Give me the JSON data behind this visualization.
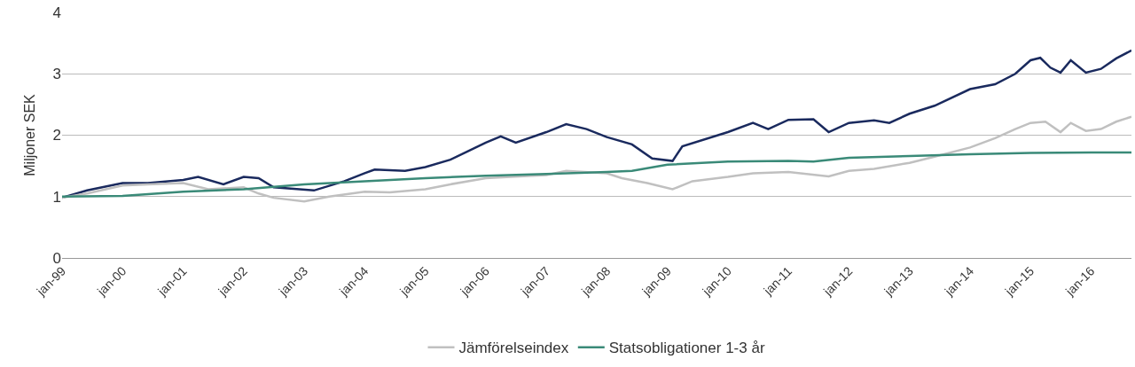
{
  "chart_data": {
    "type": "line",
    "ylabel": "Miljoner SEK",
    "xlim": [
      "1999-01",
      "2016-09"
    ],
    "ylim": [
      0,
      4
    ],
    "yticks": [
      0,
      1,
      2,
      3,
      4
    ],
    "xticks": [
      {
        "value": "1999-01",
        "label": "jan-99"
      },
      {
        "value": "2000-01",
        "label": "jan-00"
      },
      {
        "value": "2001-01",
        "label": "jan-01"
      },
      {
        "value": "2002-01",
        "label": "jan-02"
      },
      {
        "value": "2003-01",
        "label": "jan-03"
      },
      {
        "value": "2004-01",
        "label": "jan-04"
      },
      {
        "value": "2005-01",
        "label": "jan-05"
      },
      {
        "value": "2006-01",
        "label": "jan-06"
      },
      {
        "value": "2007-01",
        "label": "jan-07"
      },
      {
        "value": "2008-01",
        "label": "jan-08"
      },
      {
        "value": "2009-01",
        "label": "jan-09"
      },
      {
        "value": "2010-01",
        "label": "jan-10"
      },
      {
        "value": "2011-01",
        "label": "jan-11"
      },
      {
        "value": "2012-01",
        "label": "jan-12"
      },
      {
        "value": "2013-01",
        "label": "jan-13"
      },
      {
        "value": "2014-01",
        "label": "jan-14"
      },
      {
        "value": "2015-01",
        "label": "jan-15"
      },
      {
        "value": "2016-01",
        "label": "jan-16"
      }
    ],
    "grid": "y",
    "legend": "bottom",
    "marker": "none",
    "line_style": "solid",
    "series": [
      {
        "color": "#1a2a5e",
        "x": [
          "1999-01",
          "1999-06",
          "2000-01",
          "2000-06",
          "2001-01",
          "2001-04",
          "2001-09",
          "2002-01",
          "2002-04",
          "2002-07",
          "2003-03",
          "2003-09",
          "2004-01",
          "2004-03",
          "2004-09",
          "2005-01",
          "2005-06",
          "2005-09",
          "2006-01",
          "2006-04",
          "2006-07",
          "2007-01",
          "2007-05",
          "2007-09",
          "2008-01",
          "2008-06",
          "2008-10",
          "2009-02",
          "2009-04",
          "2010-01",
          "2010-06",
          "2010-09",
          "2011-01",
          "2011-06",
          "2011-09",
          "2012-01",
          "2012-06",
          "2012-09",
          "2013-01",
          "2013-06",
          "2014-01",
          "2014-06",
          "2014-10",
          "2015-01",
          "2015-03",
          "2015-05",
          "2015-07",
          "2015-09",
          "2015-12",
          "2016-03",
          "2016-06",
          "2016-09"
        ],
        "values": [
          0.98,
          1.1,
          1.22,
          1.22,
          1.27,
          1.32,
          1.2,
          1.32,
          1.3,
          1.15,
          1.1,
          1.25,
          1.38,
          1.44,
          1.42,
          1.48,
          1.6,
          1.72,
          1.88,
          1.98,
          1.88,
          2.05,
          2.18,
          2.1,
          1.97,
          1.85,
          1.62,
          1.58,
          1.82,
          2.05,
          2.2,
          2.1,
          2.25,
          2.26,
          2.05,
          2.2,
          2.24,
          2.2,
          2.35,
          2.48,
          2.75,
          2.83,
          3.0,
          3.22,
          3.26,
          3.1,
          3.02,
          3.22,
          3.02,
          3.08,
          3.25,
          3.38
        ]
      },
      {
        "name": "Jämförelseindex",
        "color": "#c0c0c0",
        "x": [
          "1999-01",
          "1999-06",
          "2000-01",
          "2000-06",
          "2001-01",
          "2001-06",
          "2002-01",
          "2002-04",
          "2002-07",
          "2003-01",
          "2003-06",
          "2004-01",
          "2004-06",
          "2005-01",
          "2005-06",
          "2006-01",
          "2006-06",
          "2007-01",
          "2007-05",
          "2008-01",
          "2008-04",
          "2008-09",
          "2009-02",
          "2009-06",
          "2010-01",
          "2010-06",
          "2011-01",
          "2011-09",
          "2012-01",
          "2012-06",
          "2013-01",
          "2013-06",
          "2014-01",
          "2014-06",
          "2014-10",
          "2015-01",
          "2015-04",
          "2015-07",
          "2015-09",
          "2015-12",
          "2016-03",
          "2016-06",
          "2016-09"
        ],
        "values": [
          0.98,
          1.05,
          1.18,
          1.2,
          1.22,
          1.12,
          1.15,
          1.05,
          0.98,
          0.92,
          1.0,
          1.08,
          1.07,
          1.12,
          1.2,
          1.3,
          1.32,
          1.35,
          1.42,
          1.38,
          1.3,
          1.22,
          1.12,
          1.25,
          1.32,
          1.38,
          1.4,
          1.33,
          1.42,
          1.45,
          1.55,
          1.65,
          1.8,
          1.95,
          2.1,
          2.2,
          2.22,
          2.05,
          2.2,
          2.07,
          2.1,
          2.22,
          2.3
        ]
      },
      {
        "name": "Statsobligationer 1-3 år",
        "color": "#3a8a78",
        "x": [
          "1999-01",
          "2000-01",
          "2001-01",
          "2002-01",
          "2003-01",
          "2004-01",
          "2005-01",
          "2006-01",
          "2007-01",
          "2008-01",
          "2008-06",
          "2009-01",
          "2010-01",
          "2011-01",
          "2011-06",
          "2012-01",
          "2013-01",
          "2014-01",
          "2015-01",
          "2016-01",
          "2016-09"
        ],
        "values": [
          1.0,
          1.01,
          1.08,
          1.12,
          1.2,
          1.25,
          1.3,
          1.34,
          1.37,
          1.4,
          1.42,
          1.52,
          1.57,
          1.58,
          1.57,
          1.63,
          1.66,
          1.69,
          1.71,
          1.72,
          1.72
        ]
      }
    ]
  }
}
